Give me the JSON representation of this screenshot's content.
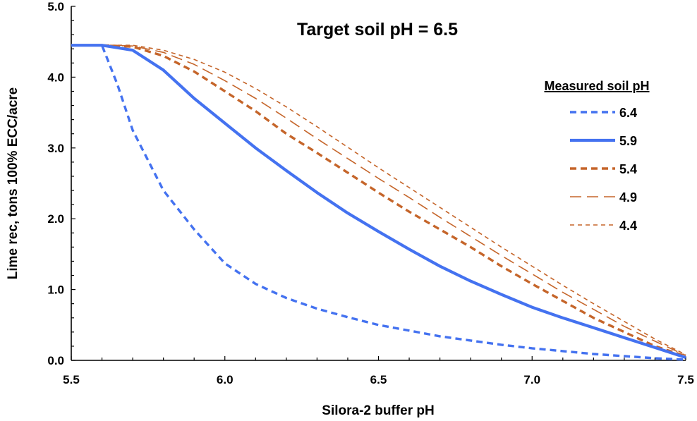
{
  "chart_data": {
    "type": "line",
    "title": "Target soil pH = 6.5",
    "xlabel": "Silora-2 buffer pH",
    "ylabel": "Lime rec, tons 100% ECC/acre",
    "xlim": [
      5.5,
      7.5
    ],
    "ylim": [
      0,
      5
    ],
    "x_ticks": [
      "5.5",
      "6.0",
      "6.5",
      "7.0",
      "7.5"
    ],
    "y_ticks": [
      "0.0",
      "1.0",
      "2.0",
      "3.0",
      "4.0",
      "5.0"
    ],
    "grid": false,
    "legend": {
      "title": "Measured soil pH",
      "placement": "right"
    },
    "series": [
      {
        "name": "6.4",
        "color": "#4472f0",
        "style": "dashed-thick",
        "x": [
          5.5,
          5.6,
          5.65,
          5.7,
          5.8,
          5.9,
          6.0,
          6.1,
          6.2,
          6.3,
          6.4,
          6.5,
          6.6,
          6.7,
          6.8,
          6.9,
          7.0,
          7.1,
          7.2,
          7.3,
          7.4,
          7.5
        ],
        "y": [
          4.45,
          4.45,
          3.9,
          3.25,
          2.4,
          1.85,
          1.37,
          1.08,
          0.88,
          0.73,
          0.61,
          0.5,
          0.42,
          0.34,
          0.28,
          0.22,
          0.17,
          0.13,
          0.09,
          0.06,
          0.03,
          0.01
        ]
      },
      {
        "name": "5.9",
        "color": "#4472f0",
        "style": "solid-thick",
        "x": [
          5.5,
          5.6,
          5.7,
          5.8,
          5.9,
          6.0,
          6.1,
          6.2,
          6.3,
          6.4,
          6.5,
          6.6,
          6.7,
          6.8,
          6.9,
          7.0,
          7.1,
          7.2,
          7.3,
          7.4,
          7.5
        ],
        "y": [
          4.45,
          4.45,
          4.38,
          4.1,
          3.7,
          3.35,
          3.0,
          2.68,
          2.37,
          2.08,
          1.82,
          1.57,
          1.33,
          1.12,
          0.93,
          0.75,
          0.6,
          0.46,
          0.32,
          0.18,
          0.04
        ]
      },
      {
        "name": "5.4",
        "color": "#c5652a",
        "style": "dashed-thick",
        "x": [
          5.5,
          5.6,
          5.7,
          5.8,
          5.9,
          6.0,
          6.1,
          6.2,
          6.3,
          6.4,
          6.5,
          6.6,
          6.7,
          6.8,
          6.9,
          7.0,
          7.1,
          7.2,
          7.3,
          7.4,
          7.5
        ],
        "y": [
          4.45,
          4.45,
          4.43,
          4.3,
          4.08,
          3.8,
          3.52,
          3.2,
          2.93,
          2.65,
          2.37,
          2.1,
          1.85,
          1.6,
          1.33,
          1.08,
          0.84,
          0.6,
          0.4,
          0.2,
          0.06
        ]
      },
      {
        "name": "4.9",
        "color": "#c5652a",
        "style": "longdash-thin",
        "x": [
          5.5,
          5.6,
          5.7,
          5.8,
          5.9,
          6.0,
          6.1,
          6.2,
          6.3,
          6.4,
          6.5,
          6.6,
          6.7,
          6.8,
          6.9,
          7.0,
          7.1,
          7.2,
          7.3,
          7.4,
          7.5
        ],
        "y": [
          4.45,
          4.45,
          4.44,
          4.35,
          4.18,
          3.95,
          3.7,
          3.42,
          3.13,
          2.85,
          2.57,
          2.3,
          2.02,
          1.75,
          1.48,
          1.22,
          0.96,
          0.72,
          0.48,
          0.27,
          0.07
        ]
      },
      {
        "name": "4.4",
        "color": "#c5652a",
        "style": "shortdash-thin",
        "x": [
          5.5,
          5.6,
          5.7,
          5.8,
          5.9,
          6.0,
          6.1,
          6.2,
          6.3,
          6.4,
          6.5,
          6.6,
          6.7,
          6.8,
          6.9,
          7.0,
          7.1,
          7.2,
          7.3,
          7.4,
          7.5
        ],
        "y": [
          4.45,
          4.45,
          4.45,
          4.38,
          4.25,
          4.07,
          3.84,
          3.58,
          3.3,
          3.01,
          2.72,
          2.44,
          2.16,
          1.88,
          1.6,
          1.33,
          1.06,
          0.8,
          0.55,
          0.3,
          0.08
        ]
      }
    ]
  }
}
